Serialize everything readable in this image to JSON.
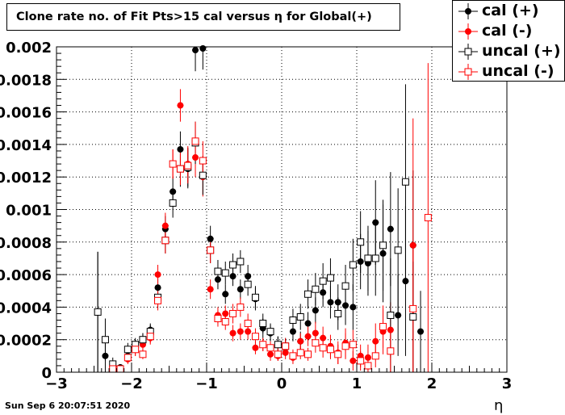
{
  "timestamp": "Sun Sep  6 20:07:51 2020",
  "chart_data": {
    "type": "scatter",
    "title": "Clone rate no. of Fit Pts>15 cal versus η for Global(+)",
    "xlabel": "η",
    "ylabel": "",
    "xlim": [
      -3,
      3
    ],
    "ylim": [
      0,
      0.002
    ],
    "grid": true,
    "legend_position": "top-right",
    "xticks": [
      -3,
      -2,
      -1,
      0,
      1,
      2,
      3
    ],
    "xtick_labels": [
      "−3",
      "−2",
      "−1",
      "0",
      "1",
      "2",
      "3"
    ],
    "yticks": [
      0,
      0.0002,
      0.0004,
      0.0006,
      0.0008,
      0.001,
      0.0012,
      0.0014,
      0.0016,
      0.0018,
      0.002
    ],
    "ytick_labels": [
      "0",
      "0.0002",
      "0.0004",
      "0.0006",
      "0.0008",
      "0.001",
      "0.0012",
      "0.0014",
      "0.0016",
      "0.0018",
      "0.002"
    ],
    "series": [
      {
        "name": "cal (+)",
        "color": "#000000",
        "marker": "filled-circle",
        "x": [
          -2.45,
          -2.35,
          -2.25,
          -2.15,
          -2.05,
          -1.95,
          -1.85,
          -1.75,
          -1.65,
          -1.55,
          -1.45,
          -1.35,
          -1.25,
          -1.15,
          -1.05,
          -0.95,
          -0.85,
          -0.75,
          -0.65,
          -0.55,
          -0.45,
          -0.35,
          -0.25,
          -0.15,
          -0.05,
          0.05,
          0.15,
          0.25,
          0.35,
          0.45,
          0.55,
          0.65,
          0.75,
          0.85,
          0.95,
          1.05,
          1.15,
          1.25,
          1.35,
          1.45,
          1.55,
          1.65,
          1.75,
          1.85
        ],
        "y": [
          0.00037,
          0.0001,
          4e-05,
          3e-05,
          0.0001,
          0.00016,
          0.0002,
          0.00026,
          0.00052,
          0.00088,
          0.00111,
          0.00137,
          0.00125,
          0.00198,
          0.00199,
          0.00082,
          0.00057,
          0.00048,
          0.00059,
          0.00051,
          0.00059,
          0.00045,
          0.00027,
          0.00024,
          0.00017,
          0.00015,
          0.00025,
          0.00019,
          0.0003,
          0.00038,
          0.00049,
          0.00043,
          0.00043,
          0.00041,
          0.0004,
          0.00068,
          0.00067,
          0.00092,
          0.00073,
          0.00088,
          0.00035,
          0.00056,
          0.00078,
          0.00025
        ],
        "yerr": [
          0.00037,
          0.0001,
          3e-05,
          2e-05,
          4e-05,
          4e-05,
          4e-05,
          4e-05,
          6e-05,
          8e-05,
          9e-05,
          0.00011,
          0.00012,
          0.00013,
          0.00013,
          8e-05,
          6e-05,
          6e-05,
          6e-05,
          6e-05,
          7e-05,
          7e-05,
          6e-05,
          5e-05,
          5e-05,
          5e-05,
          6e-05,
          6e-05,
          7e-05,
          8e-05,
          9e-05,
          0.0001,
          0.00011,
          0.00012,
          0.00014,
          0.00017,
          0.0002,
          0.00026,
          0.0003,
          0.00035,
          0.00025,
          0.00046,
          0.00046,
          0.00025
        ]
      },
      {
        "name": "cal (-)",
        "color": "#ff0000",
        "marker": "filled-circle",
        "x": [
          -2.25,
          -2.15,
          -2.05,
          -1.95,
          -1.85,
          -1.75,
          -1.65,
          -1.55,
          -1.45,
          -1.35,
          -1.25,
          -1.15,
          -1.05,
          -0.95,
          -0.85,
          -0.75,
          -0.65,
          -0.55,
          -0.45,
          -0.35,
          -0.25,
          -0.15,
          -0.05,
          0.05,
          0.15,
          0.25,
          0.35,
          0.45,
          0.55,
          0.65,
          0.75,
          0.85,
          0.95,
          1.05,
          1.15,
          1.25,
          1.35,
          1.45,
          1.75
        ],
        "y": [
          2e-05,
          2e-05,
          8e-05,
          0.00014,
          0.00017,
          0.00021,
          0.0006,
          0.0009,
          0.00128,
          0.00164,
          0.00128,
          0.00132,
          0.0012,
          0.00051,
          0.00035,
          0.00036,
          0.00024,
          0.00025,
          0.00025,
          0.00015,
          0.00017,
          0.00011,
          0.0001,
          0.00012,
          9e-05,
          0.00019,
          0.00022,
          0.00024,
          0.00021,
          0.00016,
          0.00012,
          0.00018,
          7e-05,
          0.0001,
          9e-05,
          0.00019,
          0.00025,
          0.00026,
          0.00078
        ],
        "yerr": [
          2e-05,
          2e-05,
          3e-05,
          4e-05,
          4e-05,
          4e-05,
          6e-05,
          8e-05,
          9e-05,
          0.0001,
          0.00011,
          0.00012,
          0.00012,
          6e-05,
          5e-05,
          5e-05,
          5e-05,
          5e-05,
          5e-05,
          4e-05,
          4e-05,
          4e-05,
          3e-05,
          4e-05,
          4e-05,
          5e-05,
          6e-05,
          7e-05,
          7e-05,
          7e-05,
          7e-05,
          9e-05,
          6e-05,
          7e-05,
          8e-05,
          0.00011,
          0.00014,
          0.00017,
          0.00078
        ]
      },
      {
        "name": "uncal (+)",
        "color": "#000000",
        "marker": "open-square",
        "x": [
          -2.45,
          -2.35,
          -2.25,
          -2.15,
          -2.05,
          -1.95,
          -1.85,
          -1.75,
          -1.65,
          -1.55,
          -1.45,
          -1.35,
          -1.25,
          -1.15,
          -1.05,
          -0.95,
          -0.85,
          -0.75,
          -0.65,
          -0.55,
          -0.45,
          -0.35,
          -0.25,
          -0.15,
          -0.05,
          0.05,
          0.15,
          0.25,
          0.35,
          0.45,
          0.55,
          0.65,
          0.75,
          0.85,
          0.95,
          1.05,
          1.15,
          1.25,
          1.35,
          1.45,
          1.55,
          1.65,
          1.75
        ],
        "y": [
          0.00037,
          0.0002,
          5e-05,
          2e-05,
          0.00014,
          0.00017,
          0.0002,
          0.00025,
          0.00046,
          0.00081,
          0.00104,
          0.00125,
          0.00126,
          0.00141,
          0.00121,
          0.00075,
          0.00062,
          0.00061,
          0.00066,
          0.00068,
          0.00054,
          0.00046,
          0.0003,
          0.00025,
          0.00017,
          0.00016,
          0.00032,
          0.00034,
          0.00048,
          0.00051,
          0.00056,
          0.00058,
          0.00036,
          0.00053,
          0.00066,
          0.0008,
          0.0007,
          0.0007,
          0.00078,
          0.00035,
          0.00075,
          0.00117,
          0.00034
        ],
        "yerr": [
          0.00037,
          0.00013,
          4e-05,
          2e-05,
          4e-05,
          4e-05,
          4e-05,
          4e-05,
          6e-05,
          8e-05,
          9e-05,
          0.00011,
          0.00012,
          0.00013,
          0.00012,
          8e-05,
          7e-05,
          7e-05,
          7e-05,
          7e-05,
          7e-05,
          7e-05,
          6e-05,
          5e-05,
          5e-05,
          5e-05,
          7e-05,
          8e-05,
          9e-05,
          0.0001,
          0.00011,
          0.00012,
          0.0001,
          0.00013,
          0.00016,
          0.00019,
          0.0002,
          0.00023,
          0.00028,
          0.00035,
          0.00038,
          0.0006,
          0.00034
        ]
      },
      {
        "name": "uncal (-)",
        "color": "#ff0000",
        "marker": "open-square",
        "x": [
          -2.25,
          -2.15,
          -2.05,
          -1.95,
          -1.85,
          -1.75,
          -1.65,
          -1.55,
          -1.45,
          -1.35,
          -1.25,
          -1.15,
          -1.05,
          -0.95,
          -0.85,
          -0.75,
          -0.65,
          -0.55,
          -0.45,
          -0.35,
          -0.25,
          -0.15,
          -0.05,
          0.05,
          0.15,
          0.25,
          0.35,
          0.45,
          0.55,
          0.65,
          0.75,
          0.85,
          0.95,
          1.05,
          1.15,
          1.25,
          1.35,
          1.45,
          1.75,
          1.95
        ],
        "y": [
          2e-05,
          2e-05,
          9e-05,
          0.00014,
          0.00011,
          0.00022,
          0.00044,
          0.00081,
          0.00128,
          0.00125,
          0.00127,
          0.00142,
          0.0013,
          0.00075,
          0.00033,
          0.00031,
          0.00036,
          0.0004,
          0.0003,
          0.00022,
          0.00017,
          0.00015,
          0.00011,
          0.00016,
          0.0001,
          0.00012,
          0.00011,
          0.00018,
          0.00015,
          0.00014,
          0.00011,
          0.00016,
          0.00017,
          7e-05,
          4e-05,
          0.0001,
          0.00028,
          0.00013,
          0.00039,
          0.00095
        ],
        "yerr": [
          2e-05,
          2e-05,
          3e-05,
          4e-05,
          3e-05,
          4e-05,
          6e-05,
          8e-05,
          9e-05,
          0.0001,
          0.00011,
          0.00012,
          0.00012,
          8e-05,
          5e-05,
          5e-05,
          6e-05,
          6e-05,
          6e-05,
          5e-05,
          4e-05,
          4e-05,
          4e-05,
          5e-05,
          4e-05,
          4e-05,
          4e-05,
          6e-05,
          6e-05,
          6e-05,
          6e-05,
          8e-05,
          9e-05,
          6e-05,
          4e-05,
          7e-05,
          0.00013,
          0.00013,
          0.00039,
          0.00095
        ]
      }
    ]
  }
}
